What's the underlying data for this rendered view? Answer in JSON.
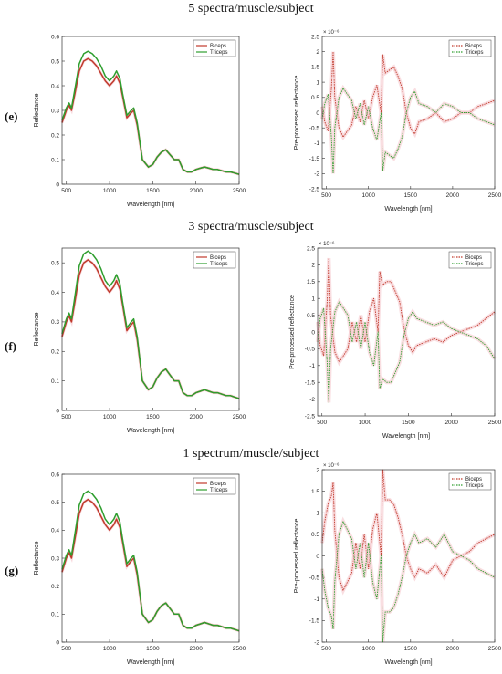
{
  "rows": [
    {
      "title": "5 spectra/muscle/subject",
      "label": "(e)"
    },
    {
      "title": "3 spectra/muscle/subject",
      "label": "(f)"
    },
    {
      "title": "1 spectrum/muscle/subject",
      "label": "(g)"
    }
  ],
  "colors": {
    "biceps": "#c0392b",
    "triceps": "#2e9e2e",
    "band": "#f4c2c8",
    "axis": "#333333"
  },
  "chart_data": [
    {
      "type": "line",
      "row": 0,
      "side": "left",
      "xlabel": "Wavelength [nm]",
      "ylabel": "Reflectance",
      "xlim": [
        450,
        2500
      ],
      "ylim": [
        0,
        0.6
      ],
      "xticks": [
        500,
        1000,
        1500,
        2000,
        2500
      ],
      "yticks": [
        0,
        0.1,
        0.2,
        0.3,
        0.4,
        0.5,
        0.6
      ],
      "exponent": "",
      "legend": "top-right",
      "x": [
        450,
        500,
        530,
        560,
        600,
        650,
        700,
        750,
        800,
        850,
        900,
        950,
        1000,
        1050,
        1080,
        1120,
        1150,
        1200,
        1250,
        1280,
        1320,
        1380,
        1450,
        1500,
        1550,
        1600,
        1650,
        1700,
        1750,
        1800,
        1850,
        1900,
        1950,
        2000,
        2050,
        2100,
        2150,
        2200,
        2250,
        2300,
        2350,
        2400,
        2450,
        2500
      ],
      "series": [
        {
          "name": "Biceps",
          "color": "#c0392b",
          "values": [
            0.25,
            0.3,
            0.32,
            0.3,
            0.37,
            0.46,
            0.5,
            0.51,
            0.5,
            0.48,
            0.45,
            0.42,
            0.4,
            0.42,
            0.44,
            0.41,
            0.36,
            0.27,
            0.29,
            0.3,
            0.24,
            0.1,
            0.07,
            0.08,
            0.11,
            0.13,
            0.14,
            0.12,
            0.1,
            0.1,
            0.06,
            0.05,
            0.05,
            0.06,
            0.065,
            0.07,
            0.065,
            0.06,
            0.06,
            0.055,
            0.05,
            0.05,
            0.045,
            0.04
          ]
        },
        {
          "name": "Triceps",
          "color": "#2e9e2e",
          "values": [
            0.26,
            0.31,
            0.33,
            0.31,
            0.39,
            0.49,
            0.53,
            0.54,
            0.53,
            0.51,
            0.48,
            0.44,
            0.42,
            0.44,
            0.46,
            0.43,
            0.37,
            0.28,
            0.3,
            0.31,
            0.25,
            0.1,
            0.07,
            0.08,
            0.11,
            0.13,
            0.14,
            0.12,
            0.1,
            0.1,
            0.06,
            0.05,
            0.05,
            0.06,
            0.065,
            0.07,
            0.065,
            0.06,
            0.06,
            0.055,
            0.05,
            0.05,
            0.045,
            0.04
          ]
        }
      ]
    },
    {
      "type": "line",
      "row": 0,
      "side": "right",
      "xlabel": "Wavelength [nm]",
      "ylabel": "Pre-processed reflectance",
      "xlim": [
        450,
        2500
      ],
      "ylim": [
        -2.5,
        2.5
      ],
      "xticks": [
        500,
        1000,
        1500,
        2000,
        2500
      ],
      "yticks": [
        -2.5,
        -2,
        -1.5,
        -1,
        -0.5,
        0,
        0.5,
        1,
        1.5,
        2,
        2.5
      ],
      "exponent": "× 10⁻⁶",
      "legend": "top-right",
      "x": [
        450,
        480,
        520,
        560,
        580,
        600,
        650,
        700,
        750,
        800,
        850,
        900,
        950,
        1000,
        1050,
        1100,
        1150,
        1170,
        1200,
        1250,
        1300,
        1350,
        1400,
        1450,
        1500,
        1550,
        1600,
        1700,
        1800,
        1900,
        2000,
        2100,
        2200,
        2300,
        2400,
        2500
      ],
      "series": [
        {
          "name": "Biceps",
          "color": "#c0392b",
          "values": [
            0.2,
            -0.3,
            -0.6,
            0.8,
            2.0,
            0.5,
            -0.5,
            -0.8,
            -0.6,
            -0.4,
            0.2,
            -0.3,
            0.4,
            -0.2,
            0.5,
            0.9,
            0.0,
            1.9,
            1.3,
            1.4,
            1.5,
            1.2,
            0.8,
            0.0,
            -0.5,
            -0.7,
            -0.3,
            -0.2,
            0.0,
            -0.3,
            -0.2,
            0.0,
            0.0,
            0.2,
            0.3,
            0.4
          ]
        },
        {
          "name": "Triceps",
          "color": "#2e9e2e",
          "values": [
            -0.2,
            0.3,
            0.6,
            -0.8,
            -2.0,
            -0.5,
            0.5,
            0.8,
            0.6,
            0.4,
            -0.2,
            0.3,
            -0.4,
            0.2,
            -0.5,
            -0.9,
            0.0,
            -1.9,
            -1.3,
            -1.4,
            -1.5,
            -1.2,
            -0.8,
            0.0,
            0.5,
            0.7,
            0.3,
            0.2,
            0.0,
            0.3,
            0.2,
            0.0,
            0.0,
            -0.2,
            -0.3,
            -0.4
          ]
        }
      ]
    },
    {
      "type": "line",
      "row": 1,
      "side": "left",
      "xlabel": "Wavelength [nm]",
      "ylabel": "Reflectance",
      "xlim": [
        450,
        2500
      ],
      "ylim": [
        0,
        0.55
      ],
      "xticks": [
        500,
        1000,
        1500,
        2000,
        2500
      ],
      "yticks": [
        0,
        0.1,
        0.2,
        0.3,
        0.4,
        0.5
      ],
      "exponent": "",
      "legend": "top-right",
      "x": [
        450,
        500,
        530,
        560,
        600,
        650,
        700,
        750,
        800,
        850,
        900,
        950,
        1000,
        1050,
        1080,
        1120,
        1150,
        1200,
        1250,
        1280,
        1320,
        1380,
        1450,
        1500,
        1550,
        1600,
        1650,
        1700,
        1750,
        1800,
        1850,
        1900,
        1950,
        2000,
        2050,
        2100,
        2150,
        2200,
        2250,
        2300,
        2350,
        2400,
        2450,
        2500
      ],
      "series": [
        {
          "name": "Biceps",
          "color": "#c0392b",
          "values": [
            0.25,
            0.3,
            0.32,
            0.3,
            0.37,
            0.46,
            0.5,
            0.51,
            0.5,
            0.48,
            0.45,
            0.42,
            0.4,
            0.42,
            0.44,
            0.41,
            0.36,
            0.27,
            0.29,
            0.3,
            0.24,
            0.1,
            0.07,
            0.08,
            0.11,
            0.13,
            0.14,
            0.12,
            0.1,
            0.1,
            0.06,
            0.05,
            0.05,
            0.06,
            0.065,
            0.07,
            0.065,
            0.06,
            0.06,
            0.055,
            0.05,
            0.05,
            0.045,
            0.04
          ]
        },
        {
          "name": "Triceps",
          "color": "#2e9e2e",
          "values": [
            0.26,
            0.31,
            0.33,
            0.31,
            0.39,
            0.49,
            0.53,
            0.54,
            0.53,
            0.51,
            0.48,
            0.44,
            0.42,
            0.44,
            0.46,
            0.43,
            0.37,
            0.28,
            0.3,
            0.31,
            0.25,
            0.1,
            0.07,
            0.08,
            0.11,
            0.13,
            0.14,
            0.12,
            0.1,
            0.1,
            0.06,
            0.05,
            0.05,
            0.06,
            0.065,
            0.07,
            0.065,
            0.06,
            0.06,
            0.055,
            0.05,
            0.05,
            0.045,
            0.04
          ]
        }
      ]
    },
    {
      "type": "line",
      "row": 1,
      "side": "right",
      "xlabel": "Wavelength [nm]",
      "ylabel": "Pre-processed reflectance",
      "xlim": [
        450,
        2500
      ],
      "ylim": [
        -2.5,
        2.5
      ],
      "xticks": [
        500,
        1000,
        1500,
        2000,
        2500
      ],
      "yticks": [
        -2.5,
        -2,
        -1.5,
        -1,
        -0.5,
        0,
        0.5,
        1,
        1.5,
        2,
        2.5
      ],
      "exponent": "× 10⁻⁶",
      "legend": "top-right",
      "x": [
        450,
        480,
        520,
        560,
        580,
        600,
        650,
        700,
        750,
        800,
        850,
        900,
        950,
        1000,
        1050,
        1100,
        1150,
        1170,
        1200,
        1250,
        1300,
        1350,
        1400,
        1450,
        1500,
        1550,
        1600,
        1700,
        1800,
        1900,
        2000,
        2100,
        2200,
        2300,
        2400,
        2500
      ],
      "series": [
        {
          "name": "Biceps",
          "color": "#c0392b",
          "values": [
            0.3,
            -0.4,
            -0.7,
            0.9,
            2.2,
            0.5,
            -0.6,
            -0.9,
            -0.7,
            -0.5,
            0.3,
            -0.3,
            0.5,
            -0.3,
            0.6,
            1.0,
            0.0,
            1.8,
            1.4,
            1.5,
            1.5,
            1.2,
            0.9,
            0.1,
            -0.4,
            -0.6,
            -0.4,
            -0.3,
            -0.2,
            -0.3,
            -0.1,
            0.0,
            0.1,
            0.2,
            0.4,
            0.6
          ]
        },
        {
          "name": "Triceps",
          "color": "#2e9e2e",
          "values": [
            -0.3,
            0.4,
            0.7,
            -0.9,
            -2.1,
            -0.5,
            0.6,
            0.9,
            0.7,
            0.5,
            -0.3,
            0.3,
            -0.5,
            0.3,
            -0.6,
            -1.0,
            0.0,
            -1.7,
            -1.4,
            -1.5,
            -1.5,
            -1.2,
            -0.9,
            -0.1,
            0.4,
            0.6,
            0.4,
            0.3,
            0.2,
            0.3,
            0.1,
            0.0,
            -0.1,
            -0.2,
            -0.4,
            -0.8
          ]
        }
      ]
    },
    {
      "type": "line",
      "row": 2,
      "side": "left",
      "xlabel": "Wavelength [nm]",
      "ylabel": "Reflectance",
      "xlim": [
        450,
        2500
      ],
      "ylim": [
        0,
        0.6
      ],
      "xticks": [
        500,
        1000,
        1500,
        2000,
        2500
      ],
      "yticks": [
        0,
        0.1,
        0.2,
        0.3,
        0.4,
        0.5,
        0.6
      ],
      "exponent": "",
      "legend": "top-right",
      "x": [
        450,
        500,
        530,
        560,
        600,
        650,
        700,
        750,
        800,
        850,
        900,
        950,
        1000,
        1050,
        1080,
        1120,
        1150,
        1200,
        1250,
        1280,
        1320,
        1380,
        1450,
        1500,
        1550,
        1600,
        1650,
        1700,
        1750,
        1800,
        1850,
        1900,
        1950,
        2000,
        2050,
        2100,
        2150,
        2200,
        2250,
        2300,
        2350,
        2400,
        2450,
        2500
      ],
      "series": [
        {
          "name": "Biceps",
          "color": "#c0392b",
          "values": [
            0.25,
            0.3,
            0.32,
            0.3,
            0.37,
            0.46,
            0.5,
            0.51,
            0.5,
            0.48,
            0.45,
            0.42,
            0.4,
            0.42,
            0.44,
            0.41,
            0.36,
            0.27,
            0.29,
            0.3,
            0.24,
            0.1,
            0.07,
            0.08,
            0.11,
            0.13,
            0.14,
            0.12,
            0.1,
            0.1,
            0.06,
            0.05,
            0.05,
            0.06,
            0.065,
            0.07,
            0.065,
            0.06,
            0.06,
            0.055,
            0.05,
            0.05,
            0.045,
            0.04
          ]
        },
        {
          "name": "Triceps",
          "color": "#2e9e2e",
          "values": [
            0.26,
            0.31,
            0.33,
            0.31,
            0.39,
            0.49,
            0.53,
            0.54,
            0.53,
            0.51,
            0.48,
            0.44,
            0.42,
            0.44,
            0.46,
            0.43,
            0.37,
            0.28,
            0.3,
            0.31,
            0.25,
            0.1,
            0.07,
            0.08,
            0.11,
            0.13,
            0.14,
            0.12,
            0.1,
            0.1,
            0.06,
            0.05,
            0.05,
            0.06,
            0.065,
            0.07,
            0.065,
            0.06,
            0.06,
            0.055,
            0.05,
            0.05,
            0.045,
            0.04
          ]
        }
      ]
    },
    {
      "type": "line",
      "row": 2,
      "side": "right",
      "xlabel": "Wavelength [nm]",
      "ylabel": "Pre-processed reflectance",
      "xlim": [
        450,
        2500
      ],
      "ylim": [
        -2,
        2
      ],
      "xticks": [
        500,
        1000,
        1500,
        2000,
        2500
      ],
      "yticks": [
        -2,
        -1.5,
        -1,
        -0.5,
        0,
        0.5,
        1,
        1.5,
        2
      ],
      "exponent": "× 10⁻⁶",
      "legend": "top-right",
      "x": [
        450,
        480,
        520,
        560,
        580,
        600,
        650,
        700,
        750,
        800,
        850,
        900,
        950,
        1000,
        1050,
        1100,
        1150,
        1170,
        1200,
        1250,
        1300,
        1350,
        1400,
        1450,
        1500,
        1550,
        1600,
        1700,
        1800,
        1900,
        2000,
        2100,
        2200,
        2300,
        2400,
        2500
      ],
      "series": [
        {
          "name": "Biceps",
          "color": "#c0392b",
          "values": [
            0.3,
            0.8,
            1.2,
            1.4,
            1.7,
            0.6,
            -0.5,
            -0.8,
            -0.6,
            -0.4,
            0.3,
            -0.3,
            0.5,
            -0.3,
            0.6,
            1.0,
            0.0,
            2.0,
            1.3,
            1.3,
            1.2,
            0.9,
            0.5,
            0.0,
            -0.3,
            -0.5,
            -0.3,
            -0.4,
            -0.2,
            -0.5,
            -0.1,
            0.0,
            0.1,
            0.3,
            0.4,
            0.5
          ]
        },
        {
          "name": "Triceps",
          "color": "#2e9e2e",
          "values": [
            -0.3,
            -0.8,
            -1.2,
            -1.4,
            -1.7,
            -0.6,
            0.5,
            0.8,
            0.6,
            0.4,
            -0.3,
            0.3,
            -0.5,
            0.3,
            -0.6,
            -1.0,
            0.0,
            -2.0,
            -1.3,
            -1.3,
            -1.2,
            -0.9,
            -0.5,
            0.0,
            0.3,
            0.5,
            0.3,
            0.4,
            0.2,
            0.5,
            0.1,
            0.0,
            -0.1,
            -0.3,
            -0.4,
            -0.5
          ]
        }
      ]
    }
  ]
}
